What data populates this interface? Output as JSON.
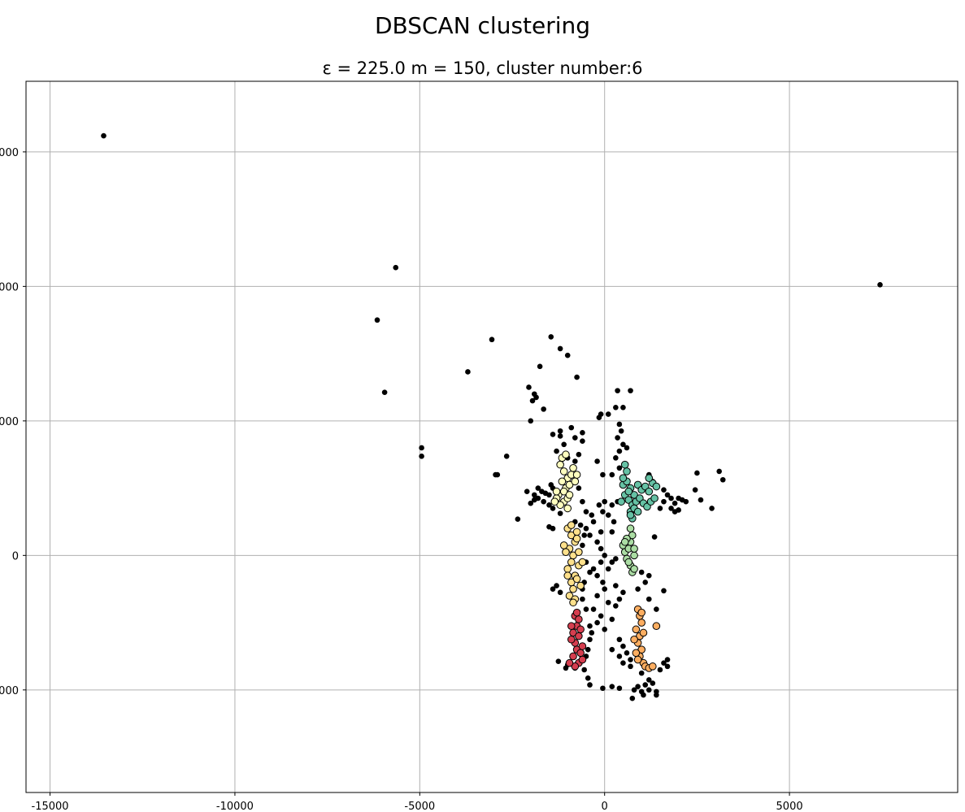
{
  "figure": {
    "suptitle": "DBSCAN clustering",
    "subtitle": "ε = 225.0  m = 150, cluster number:6"
  },
  "chart_data": {
    "type": "scatter",
    "title": "ε = 225.0  m = 150, cluster number:6",
    "xlabel": "",
    "ylabel": "",
    "xlim": [
      -15650,
      9550
    ],
    "ylim": [
      -7050,
      14100
    ],
    "grid": true,
    "x_ticks": [
      -15000,
      -10000,
      -5000,
      0,
      5000
    ],
    "x_tick_labels": [
      "-15000",
      "-10000",
      "-5000",
      "0",
      "5000"
    ],
    "y_ticks": [
      -4000,
      0,
      4000,
      8000,
      12000
    ],
    "y_tick_labels": [
      "000",
      "0",
      "000",
      "000",
      "000"
    ],
    "noise_color": "#000000",
    "series": [
      {
        "color": "#66c2a5",
        "points": [
          [
            500,
            2100
          ],
          [
            600,
            2200
          ],
          [
            700,
            2000
          ],
          [
            800,
            1800
          ],
          [
            900,
            2100
          ],
          [
            1000,
            1950
          ],
          [
            1100,
            2050
          ],
          [
            1200,
            1900
          ],
          [
            1300,
            2150
          ],
          [
            1400,
            2050
          ],
          [
            550,
            1800
          ],
          [
            650,
            1650
          ],
          [
            750,
            1500
          ],
          [
            850,
            1600
          ],
          [
            950,
            1700
          ],
          [
            1050,
            1550
          ],
          [
            1150,
            1450
          ],
          [
            1250,
            1600
          ],
          [
            700,
            1300
          ],
          [
            800,
            1400
          ],
          [
            900,
            1300
          ],
          [
            600,
            2500
          ],
          [
            550,
            2700
          ],
          [
            500,
            2300
          ],
          [
            650,
            1900
          ],
          [
            1350,
            1700
          ],
          [
            1200,
            2300
          ],
          [
            450,
            1600
          ],
          [
            750,
            1100
          ],
          [
            700,
            1200
          ]
        ]
      },
      {
        "color": "#abdda4",
        "points": [
          [
            500,
            300
          ],
          [
            550,
            100
          ],
          [
            600,
            -100
          ],
          [
            700,
            400
          ],
          [
            750,
            600
          ],
          [
            700,
            -300
          ],
          [
            800,
            0
          ],
          [
            650,
            200
          ],
          [
            750,
            -500
          ],
          [
            800,
            200
          ],
          [
            600,
            500
          ],
          [
            700,
            800
          ],
          [
            650,
            -200
          ],
          [
            800,
            -400
          ],
          [
            550,
            400
          ]
        ]
      },
      {
        "color": "#ffffbf",
        "points": [
          [
            -1200,
            2700
          ],
          [
            -1100,
            2500
          ],
          [
            -1000,
            2300
          ],
          [
            -1150,
            2200
          ],
          [
            -1050,
            2000
          ],
          [
            -1250,
            1800
          ],
          [
            -1100,
            1600
          ],
          [
            -1000,
            1700
          ],
          [
            -950,
            2100
          ],
          [
            -1200,
            1500
          ],
          [
            -1300,
            1700
          ],
          [
            -900,
            2400
          ],
          [
            -850,
            2600
          ],
          [
            -1150,
            2900
          ],
          [
            -1050,
            3000
          ],
          [
            -1350,
            1600
          ],
          [
            -1000,
            1400
          ],
          [
            -1100,
            1900
          ],
          [
            -1300,
            1900
          ],
          [
            -950,
            1800
          ],
          [
            -800,
            2200
          ],
          [
            -750,
            2400
          ]
        ]
      },
      {
        "color": "#fee08b",
        "points": [
          [
            -1000,
            800
          ],
          [
            -900,
            600
          ],
          [
            -800,
            400
          ],
          [
            -950,
            200
          ],
          [
            -850,
            0
          ],
          [
            -900,
            -200
          ],
          [
            -1000,
            -400
          ],
          [
            -800,
            -600
          ],
          [
            -900,
            -800
          ],
          [
            -850,
            -1000
          ],
          [
            -750,
            -700
          ],
          [
            -700,
            -300
          ],
          [
            -1050,
            100
          ],
          [
            -950,
            -1200
          ],
          [
            -800,
            -1300
          ],
          [
            -650,
            -900
          ],
          [
            -750,
            700
          ],
          [
            -900,
            900
          ],
          [
            -1100,
            300
          ],
          [
            -600,
            -200
          ],
          [
            -700,
            100
          ],
          [
            -1000,
            -600
          ],
          [
            -850,
            -1400
          ],
          [
            -750,
            500
          ]
        ]
      },
      {
        "color": "#fdae61",
        "points": [
          [
            900,
            -1600
          ],
          [
            950,
            -1800
          ],
          [
            1000,
            -2000
          ],
          [
            850,
            -2200
          ],
          [
            950,
            -2400
          ],
          [
            900,
            -2600
          ],
          [
            1000,
            -2800
          ],
          [
            950,
            -3000
          ],
          [
            1050,
            -3200
          ],
          [
            850,
            -2900
          ],
          [
            1100,
            -3300
          ],
          [
            1200,
            -3350
          ],
          [
            1300,
            -3300
          ],
          [
            900,
            -3100
          ],
          [
            1000,
            -1700
          ],
          [
            1400,
            -2100
          ],
          [
            800,
            -2500
          ],
          [
            1050,
            -2300
          ]
        ]
      },
      {
        "color": "#d53e4f",
        "points": [
          [
            -800,
            -1800
          ],
          [
            -700,
            -1900
          ],
          [
            -750,
            -2100
          ],
          [
            -850,
            -2300
          ],
          [
            -700,
            -2400
          ],
          [
            -800,
            -2600
          ],
          [
            -750,
            -2800
          ],
          [
            -650,
            -2900
          ],
          [
            -850,
            -3000
          ],
          [
            -700,
            -3200
          ],
          [
            -800,
            -3300
          ],
          [
            -600,
            -3100
          ],
          [
            -900,
            -2500
          ],
          [
            -650,
            -2200
          ],
          [
            -750,
            -1700
          ],
          [
            -950,
            -3200
          ],
          [
            -600,
            -2700
          ],
          [
            -900,
            -2100
          ]
        ]
      }
    ],
    "noise_points": [
      [
        -13550,
        12480
      ],
      [
        -5650,
        8560
      ],
      [
        7450,
        8050
      ],
      [
        -6150,
        7000
      ],
      [
        -3050,
        6420
      ],
      [
        -1450,
        6500
      ],
      [
        -1200,
        6150
      ],
      [
        -1000,
        5950
      ],
      [
        -1750,
        5620
      ],
      [
        -3700,
        5460
      ],
      [
        -750,
        5300
      ],
      [
        -5950,
        4850
      ],
      [
        -2050,
        5000
      ],
      [
        -1900,
        4800
      ],
      [
        -1950,
        4600
      ],
      [
        -1850,
        4700
      ],
      [
        -1650,
        4350
      ],
      [
        -2000,
        4000
      ],
      [
        350,
        4900
      ],
      [
        700,
        4900
      ],
      [
        -100,
        4200
      ],
      [
        -150,
        4100
      ],
      [
        100,
        4200
      ],
      [
        300,
        4400
      ],
      [
        500,
        4400
      ],
      [
        400,
        3900
      ],
      [
        450,
        3700
      ],
      [
        350,
        3500
      ],
      [
        500,
        3300
      ],
      [
        400,
        3100
      ],
      [
        600,
        3200
      ],
      [
        -4950,
        3200
      ],
      [
        -4950,
        2950
      ],
      [
        -2650,
        2950
      ],
      [
        -2950,
        2400
      ],
      [
        -2900,
        2400
      ],
      [
        2500,
        2450
      ],
      [
        3100,
        2500
      ],
      [
        3200,
        2250
      ],
      [
        2450,
        1950
      ],
      [
        2600,
        1650
      ],
      [
        2900,
        1400
      ],
      [
        -2100,
        1900
      ],
      [
        -1900,
        1800
      ],
      [
        -1800,
        1700
      ],
      [
        -1700,
        1900
      ],
      [
        -1600,
        1850
      ],
      [
        -1500,
        1800
      ],
      [
        -1400,
        2000
      ],
      [
        -1300,
        1650
      ],
      [
        -2000,
        1550
      ],
      [
        -1800,
        2000
      ],
      [
        -1650,
        1600
      ],
      [
        -1450,
        2100
      ],
      [
        -1500,
        1500
      ],
      [
        -1400,
        1400
      ],
      [
        -1200,
        1250
      ],
      [
        -1900,
        1650
      ],
      [
        1600,
        1950
      ],
      [
        1700,
        1800
      ],
      [
        1800,
        1700
      ],
      [
        1900,
        1550
      ],
      [
        2000,
        1700
      ],
      [
        2100,
        1650
      ],
      [
        1600,
        1600
      ],
      [
        1500,
        1400
      ],
      [
        1800,
        1400
      ],
      [
        1900,
        1300
      ],
      [
        2000,
        1350
      ],
      [
        2200,
        1600
      ],
      [
        -2350,
        1080
      ],
      [
        -1500,
        850
      ],
      [
        -1400,
        800
      ],
      [
        -650,
        900
      ],
      [
        -500,
        800
      ],
      [
        -400,
        600
      ],
      [
        -300,
        1000
      ],
      [
        -200,
        400
      ],
      [
        -100,
        200
      ],
      [
        0,
        0
      ],
      [
        -100,
        -200
      ],
      [
        -300,
        -400
      ],
      [
        -200,
        -600
      ],
      [
        -50,
        -800
      ],
      [
        100,
        -400
      ],
      [
        200,
        -200
      ],
      [
        300,
        -100
      ],
      [
        0,
        -1000
      ],
      [
        -200,
        -1200
      ],
      [
        100,
        -1400
      ],
      [
        -300,
        -1600
      ],
      [
        -100,
        -1800
      ],
      [
        200,
        -1900
      ],
      [
        -200,
        -2000
      ],
      [
        0,
        -2200
      ],
      [
        -400,
        -2100
      ],
      [
        300,
        -1500
      ],
      [
        400,
        -1300
      ],
      [
        500,
        -1100
      ],
      [
        300,
        -900
      ],
      [
        1000,
        -500
      ],
      [
        1100,
        -800
      ],
      [
        1200,
        -600
      ],
      [
        900,
        -1000
      ],
      [
        1200,
        -1300
      ],
      [
        1400,
        -1600
      ],
      [
        1600,
        -1050
      ],
      [
        1350,
        550
      ],
      [
        200,
        700
      ],
      [
        -100,
        700
      ],
      [
        100,
        1200
      ],
      [
        -150,
        1500
      ],
      [
        0,
        1600
      ],
      [
        200,
        1500
      ],
      [
        -350,
        1200
      ],
      [
        -500,
        1300
      ],
      [
        -600,
        1600
      ],
      [
        -700,
        2000
      ],
      [
        -800,
        2800
      ],
      [
        -1000,
        2900
      ],
      [
        -1300,
        3100
      ],
      [
        -1100,
        3300
      ],
      [
        -800,
        3500
      ],
      [
        -600,
        3400
      ],
      [
        -700,
        3000
      ],
      [
        -1200,
        3550
      ],
      [
        -900,
        3800
      ],
      [
        -600,
        3650
      ],
      [
        -1400,
        3600
      ],
      [
        -1200,
        3700
      ],
      [
        400,
        2600
      ],
      [
        300,
        2900
      ],
      [
        200,
        2400
      ],
      [
        350,
        1600
      ],
      [
        250,
        1000
      ],
      [
        -50,
        1300
      ],
      [
        -50,
        2400
      ],
      [
        -200,
        2800
      ],
      [
        1200,
        2400
      ],
      [
        1300,
        2200
      ],
      [
        1600,
        -3200
      ],
      [
        1700,
        -3100
      ],
      [
        1500,
        -3400
      ],
      [
        1700,
        -3300
      ],
      [
        1000,
        -3500
      ],
      [
        1200,
        -3700
      ],
      [
        1100,
        -3850
      ],
      [
        900,
        -3900
      ],
      [
        1000,
        -4050
      ],
      [
        1200,
        -4000
      ],
      [
        1300,
        -3800
      ],
      [
        1400,
        -4050
      ],
      [
        1400,
        -4150
      ],
      [
        750,
        -4250
      ],
      [
        1050,
        -4150
      ],
      [
        800,
        -4000
      ],
      [
        400,
        -3950
      ],
      [
        200,
        -3900
      ],
      [
        -50,
        -3950
      ],
      [
        -400,
        -3850
      ],
      [
        -450,
        -3650
      ],
      [
        -550,
        -3400
      ],
      [
        -800,
        -3350
      ],
      [
        -1000,
        -3250
      ],
      [
        -1250,
        -3150
      ],
      [
        -1050,
        -3350
      ],
      [
        -500,
        -3000
      ],
      [
        -450,
        -2800
      ],
      [
        -400,
        -2500
      ],
      [
        -350,
        -2300
      ],
      [
        400,
        -2500
      ],
      [
        500,
        -2700
      ],
      [
        600,
        -2900
      ],
      [
        400,
        -3000
      ],
      [
        500,
        -3200
      ],
      [
        700,
        -3300
      ],
      [
        700,
        -3100
      ],
      [
        200,
        -2800
      ],
      [
        -1300,
        -900
      ],
      [
        -1200,
        -1100
      ],
      [
        -1400,
        -1000
      ],
      [
        -500,
        -1600
      ],
      [
        -600,
        -1300
      ],
      [
        -600,
        -1000
      ],
      [
        -550,
        -800
      ],
      [
        -400,
        -500
      ],
      [
        -500,
        -200
      ],
      [
        -600,
        300
      ],
      [
        -550,
        600
      ],
      [
        -800,
        1000
      ]
    ]
  }
}
